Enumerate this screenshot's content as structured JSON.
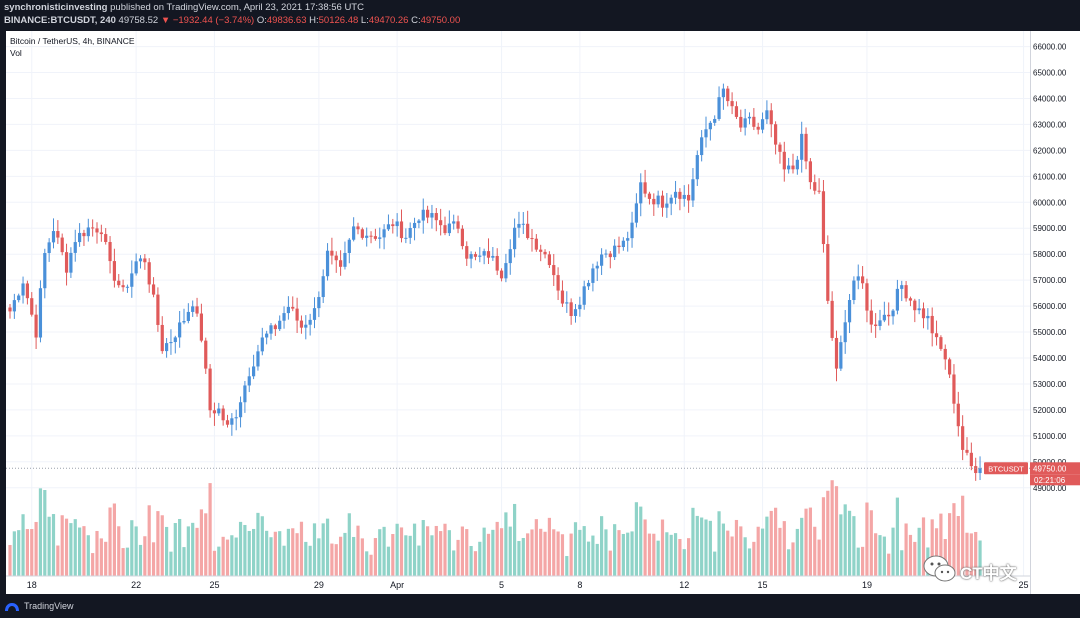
{
  "header": {
    "publisher": "synchronisticinvesting",
    "published_text": " published on TradingView.com, April 23, 2021 17:38:56 UTC",
    "symbol_line": "BINANCE:BTCUSDT, 240",
    "last": "49758.52",
    "change": "▼ −1932.44 (−3.74%)",
    "o_label": "O:",
    "o_value": "49836.63",
    "h_label": "H:",
    "h_value": "50126.48",
    "l_label": "L:",
    "l_value": "49470.26",
    "c_label": "C:",
    "c_value": "49750.00"
  },
  "legend": {
    "title": "Bitcoin / TetherUS, 4h, BINANCE",
    "vol": "Vol"
  },
  "price_badge": {
    "symbol": "BTCUSDT",
    "price": "49750.00",
    "countdown": "02:21:06"
  },
  "footer": {
    "brand": "TradingView"
  },
  "watermark": {
    "text": "CT中文"
  },
  "colors": {
    "up": "#4a90d9",
    "down": "#e05a5a",
    "vol_up": "#8fd3c8",
    "vol_down": "#f4a6a6",
    "background": "#131722"
  },
  "chart_data": {
    "type": "candlestick",
    "title": "Bitcoin / TetherUS, 4h, BINANCE",
    "interval": "4h",
    "ylim": [
      45600,
      66600
    ],
    "y_ticks": [
      49000,
      50000,
      51000,
      52000,
      53000,
      54000,
      55000,
      56000,
      57000,
      58000,
      59000,
      60000,
      61000,
      62000,
      63000,
      64000,
      65000,
      66000
    ],
    "y_tick_labels": [
      "49000.00",
      "50000.00",
      "51000.00",
      "52000.00",
      "53000.00",
      "54000.00",
      "55000.00",
      "56000.00",
      "57000.00",
      "58000.00",
      "59000.00",
      "60000.00",
      "61000.00",
      "62000.00",
      "63000.00",
      "64000.00",
      "65000.00",
      "66000.00"
    ],
    "x_tick_labels": [
      {
        "label": "18",
        "index": 5
      },
      {
        "label": "22",
        "index": 29
      },
      {
        "label": "25",
        "index": 47
      },
      {
        "label": "29",
        "index": 71
      },
      {
        "label": "Apr",
        "index": 89
      },
      {
        "label": "5",
        "index": 113
      },
      {
        "label": "8",
        "index": 131
      },
      {
        "label": "12",
        "index": 155
      },
      {
        "label": "15",
        "index": 173
      },
      {
        "label": "19",
        "index": 197
      },
      {
        "label": "25",
        "index": 233
      }
    ],
    "last_price": 49750,
    "anchors": [
      [
        0,
        55800
      ],
      [
        3,
        57000
      ],
      [
        6,
        55000
      ],
      [
        8,
        58000
      ],
      [
        10,
        59000
      ],
      [
        13,
        57500
      ],
      [
        15,
        58600
      ],
      [
        18,
        59000
      ],
      [
        21,
        59000
      ],
      [
        23,
        57500
      ],
      [
        26,
        56500
      ],
      [
        29,
        57700
      ],
      [
        31,
        57800
      ],
      [
        33,
        56200
      ],
      [
        35,
        54400
      ],
      [
        37,
        54700
      ],
      [
        40,
        55500
      ],
      [
        42,
        56200
      ],
      [
        44,
        54800
      ],
      [
        46,
        52000
      ],
      [
        48,
        52000
      ],
      [
        50,
        51300
      ],
      [
        52,
        51900
      ],
      [
        55,
        53500
      ],
      [
        58,
        54700
      ],
      [
        61,
        55200
      ],
      [
        64,
        56000
      ],
      [
        67,
        55200
      ],
      [
        70,
        55800
      ],
      [
        73,
        58000
      ],
      [
        76,
        57300
      ],
      [
        79,
        59000
      ],
      [
        82,
        58800
      ],
      [
        85,
        58700
      ],
      [
        88,
        59200
      ],
      [
        91,
        58700
      ],
      [
        94,
        59500
      ],
      [
        97,
        59400
      ],
      [
        100,
        59000
      ],
      [
        103,
        59100
      ],
      [
        105,
        58000
      ],
      [
        107,
        57800
      ],
      [
        110,
        58000
      ],
      [
        113,
        57300
      ],
      [
        116,
        59000
      ],
      [
        118,
        59000
      ],
      [
        121,
        58400
      ],
      [
        124,
        57800
      ],
      [
        127,
        56200
      ],
      [
        129,
        55800
      ],
      [
        131,
        56300
      ],
      [
        134,
        57500
      ],
      [
        136,
        58000
      ],
      [
        139,
        58200
      ],
      [
        141,
        58400
      ],
      [
        143,
        59000
      ],
      [
        145,
        60700
      ],
      [
        147,
        60200
      ],
      [
        150,
        60000
      ],
      [
        153,
        60500
      ],
      [
        156,
        60100
      ],
      [
        158,
        61800
      ],
      [
        160,
        62800
      ],
      [
        162,
        63400
      ],
      [
        164,
        64300
      ],
      [
        166,
        63500
      ],
      [
        168,
        62900
      ],
      [
        170,
        63100
      ],
      [
        172,
        62800
      ],
      [
        174,
        63400
      ],
      [
        176,
        62200
      ],
      [
        178,
        61200
      ],
      [
        180,
        61300
      ],
      [
        182,
        62400
      ],
      [
        184,
        60700
      ],
      [
        186,
        60300
      ],
      [
        188,
        56200
      ],
      [
        190,
        53400
      ],
      [
        192,
        55600
      ],
      [
        194,
        57000
      ],
      [
        196,
        56800
      ],
      [
        198,
        55200
      ],
      [
        200,
        55600
      ],
      [
        202,
        55700
      ],
      [
        205,
        56800
      ],
      [
        208,
        56000
      ],
      [
        211,
        55500
      ],
      [
        213,
        54600
      ],
      [
        215,
        54000
      ],
      [
        217,
        52400
      ],
      [
        219,
        50500
      ],
      [
        221,
        49800
      ],
      [
        223,
        49750
      ]
    ]
  }
}
